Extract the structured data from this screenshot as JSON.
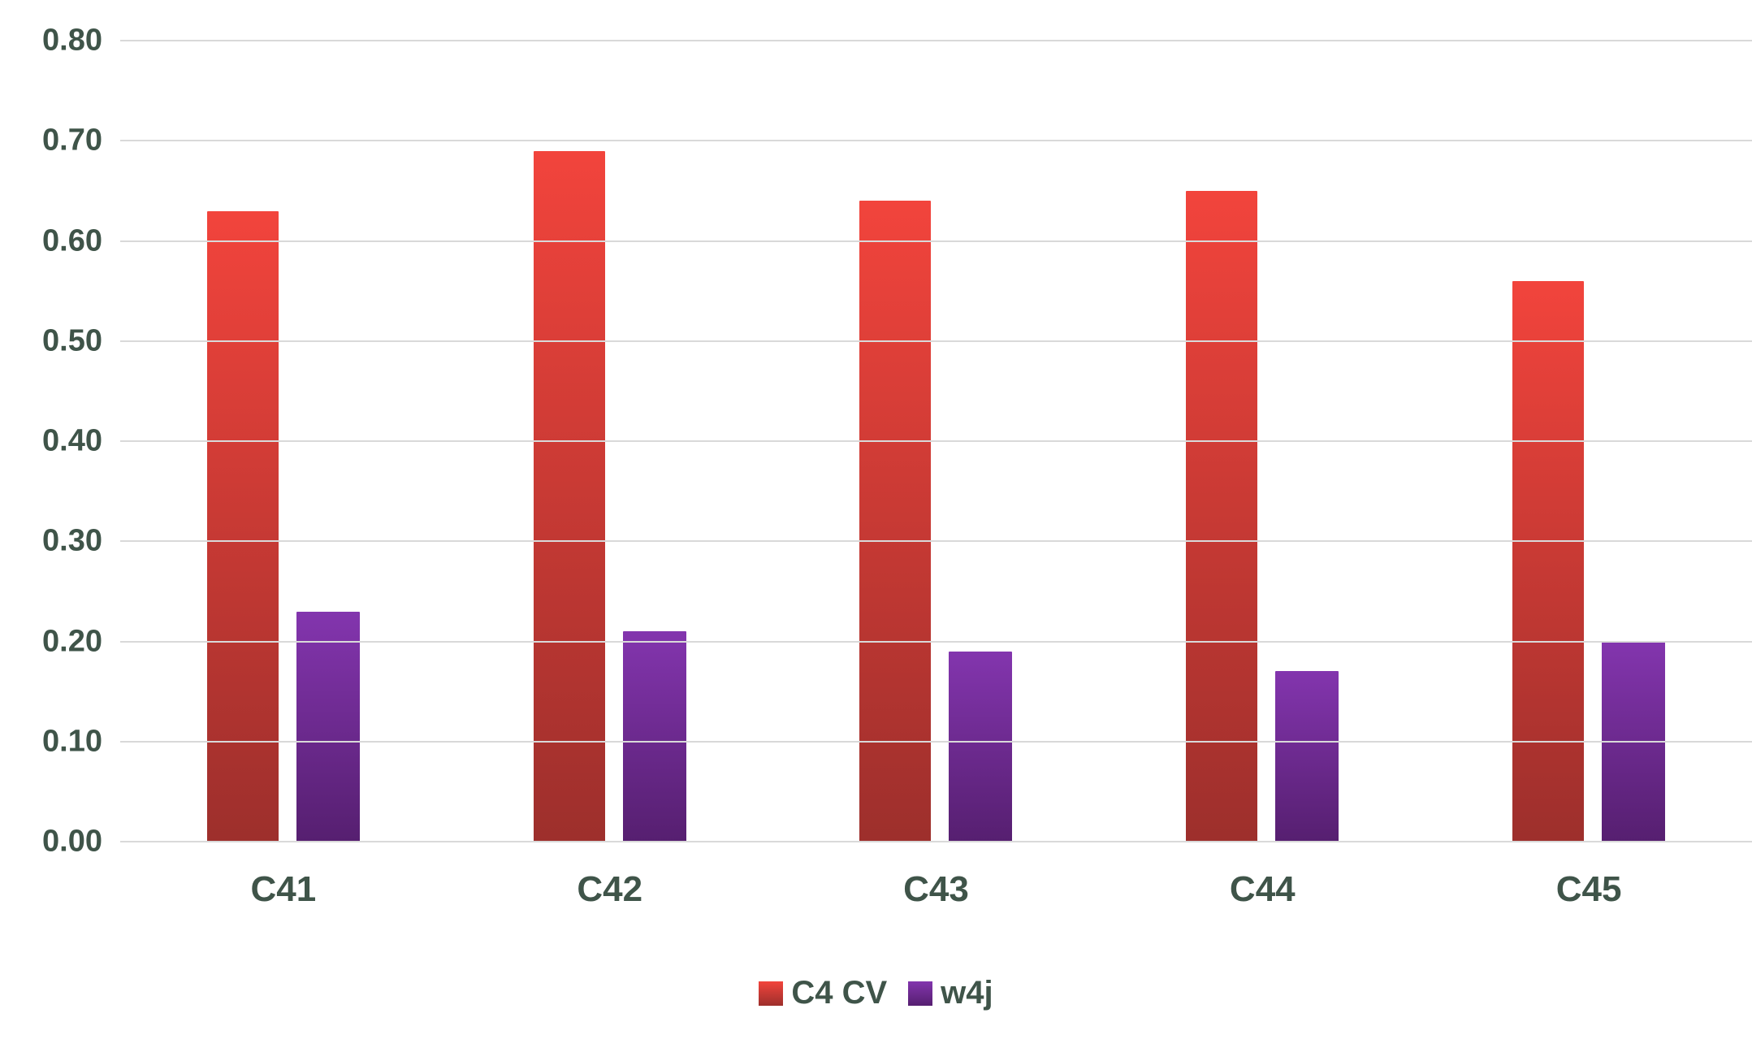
{
  "chart_data": {
    "type": "bar",
    "title": "",
    "xlabel": "",
    "ylabel": "",
    "categories": [
      "C41",
      "C42",
      "C43",
      "C44",
      "C45"
    ],
    "series": [
      {
        "name": "C4 CV",
        "color_top": "#f2443c",
        "color_bottom": "#9d2f2c",
        "values": [
          0.63,
          0.69,
          0.64,
          0.65,
          0.56
        ]
      },
      {
        "name": "w4j",
        "color_top": "#8335ae",
        "color_bottom": "#561f70",
        "values": [
          0.23,
          0.21,
          0.19,
          0.17,
          0.2
        ]
      }
    ],
    "ylim": [
      0,
      0.8
    ],
    "ytick_step": 0.1,
    "yticks": [
      "0.00",
      "0.10",
      "0.20",
      "0.30",
      "0.40",
      "0.50",
      "0.60",
      "0.70",
      "0.80"
    ],
    "grid": true,
    "legend_position": "bottom"
  },
  "colors": {
    "background": "#ffffff",
    "gridline": "#d9d9d9",
    "text": "#3f5449"
  }
}
